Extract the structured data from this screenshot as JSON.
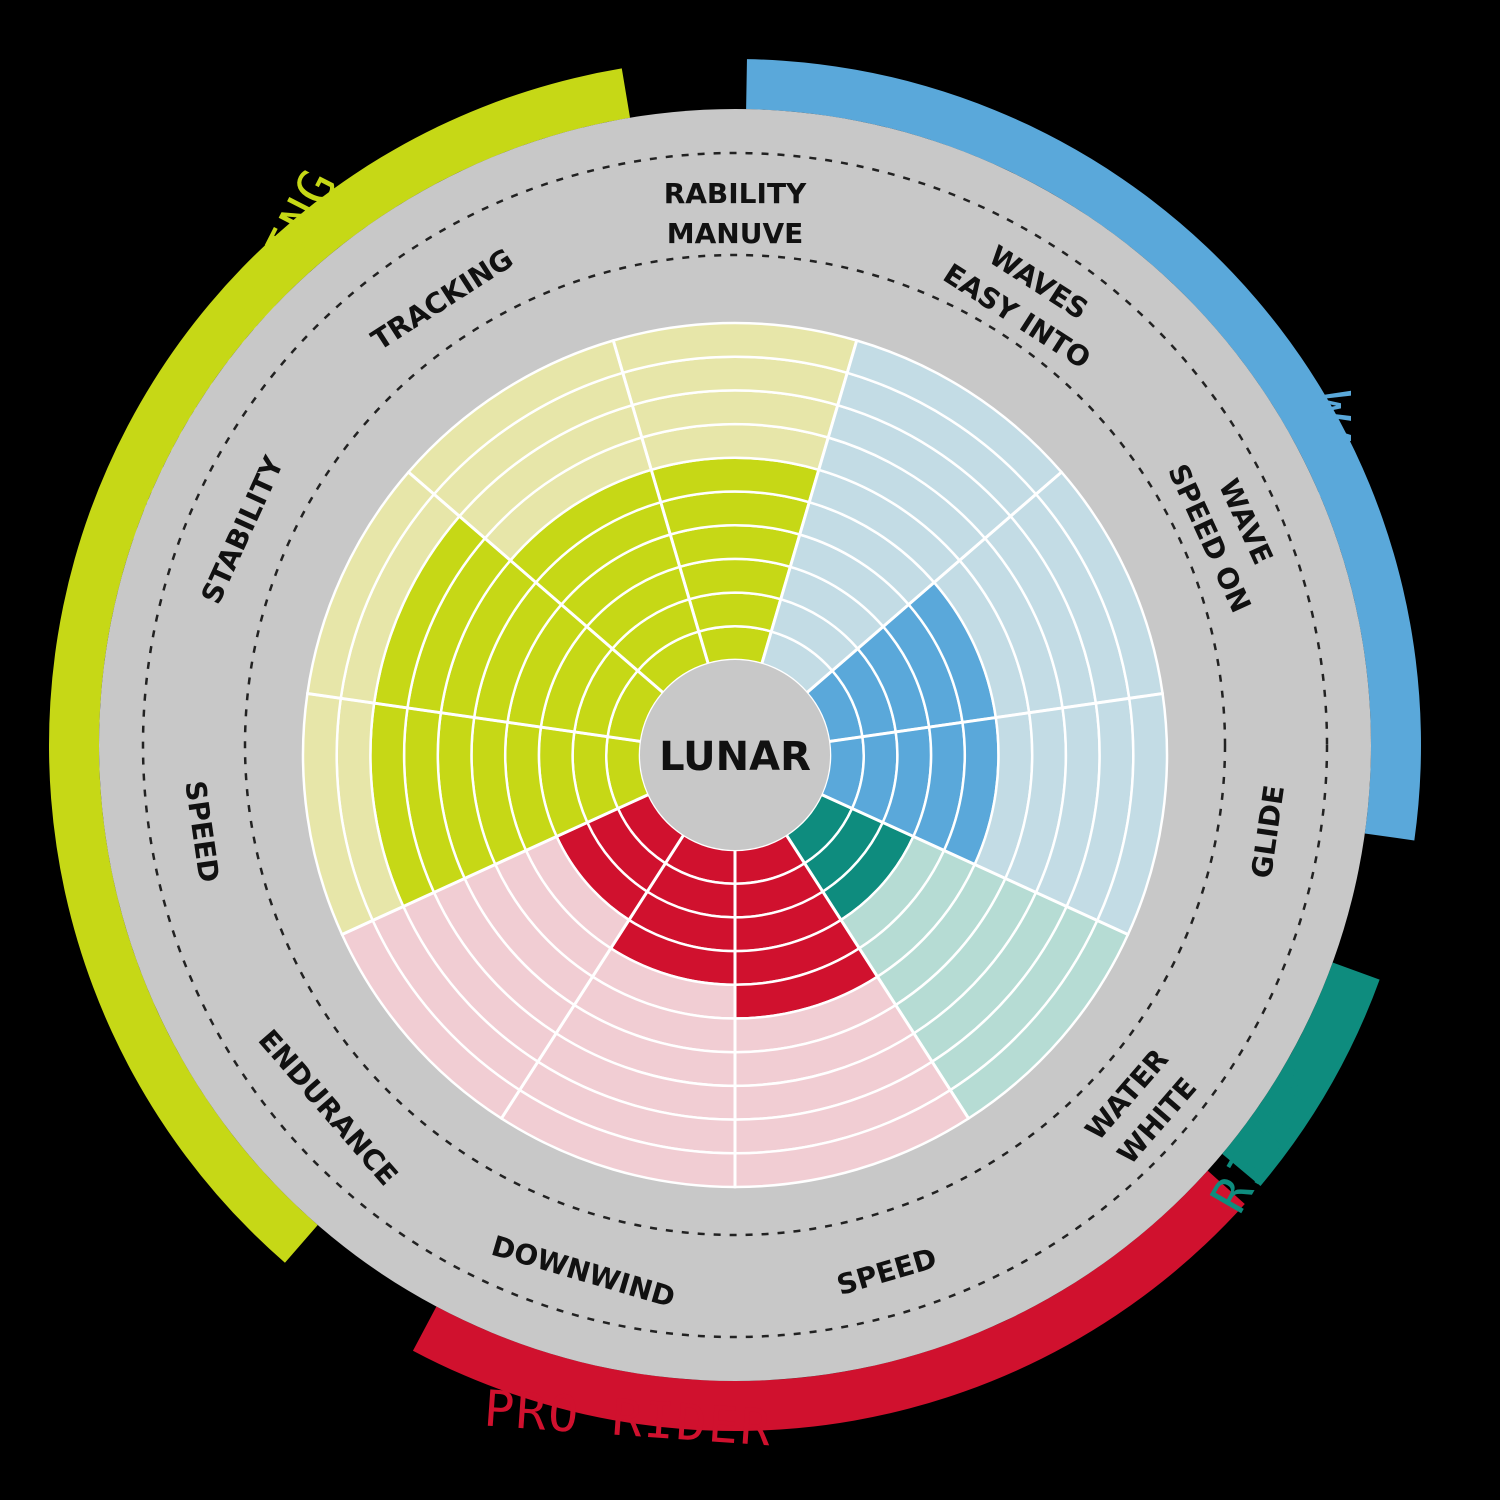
{
  "chart_data": {
    "type": "radar-bar",
    "title": "LUNAR",
    "max_level": 10,
    "colors": {
      "background": "#000000",
      "disc": "#c8c8c8",
      "grid": "#ffffff",
      "dashed": "#222222"
    },
    "categories": [
      {
        "key": "entry",
        "name": "ENTRY/TOURING",
        "color": "#c6d816",
        "light": "#e7e6a9",
        "start_deg": 221,
        "end_deg": 350.5
      },
      {
        "key": "wave",
        "name": "WAVE",
        "color": "#5aa8da",
        "light": "#c3dce5",
        "start_deg": 1,
        "end_deg": 98
      },
      {
        "key": "river",
        "name": "RIVER",
        "color": "#0e8c7e",
        "light": "#b6dcd4",
        "start_deg": 110,
        "end_deg": 130
      },
      {
        "key": "pro",
        "name": "PRO RIDER",
        "color": "#d0112e",
        "light": "#f1cdd3",
        "start_deg": 132,
        "end_deg": 208
      }
    ],
    "axes": [
      {
        "label": [
          "MANUVE",
          "RABILITY"
        ],
        "category": "entry",
        "value": 6
      },
      {
        "label": [
          "EASY   INTO",
          "WAVES"
        ],
        "category": "wave",
        "value": 0
      },
      {
        "label": [
          "SPEED ON",
          "WAVE"
        ],
        "category": "wave",
        "value": 5
      },
      {
        "label": [
          "GLIDE"
        ],
        "category": "wave",
        "value": 5
      },
      {
        "label": [
          "WHITE",
          "WATER"
        ],
        "category": "river",
        "value": 3
      },
      {
        "label": [
          "SPEED"
        ],
        "category": "pro",
        "value": 5
      },
      {
        "label": [
          "DOWNWIND"
        ],
        "category": "pro",
        "value": 4
      },
      {
        "label": [
          "ENDURANCE"
        ],
        "category": "pro",
        "value": 3
      },
      {
        "label": [
          "SPEED"
        ],
        "category": "entry",
        "value": 8
      },
      {
        "label": [
          "STABILITY"
        ],
        "category": "entry",
        "value": 8
      },
      {
        "label": [
          "TRACKING"
        ],
        "category": "entry",
        "value": 6
      }
    ]
  }
}
